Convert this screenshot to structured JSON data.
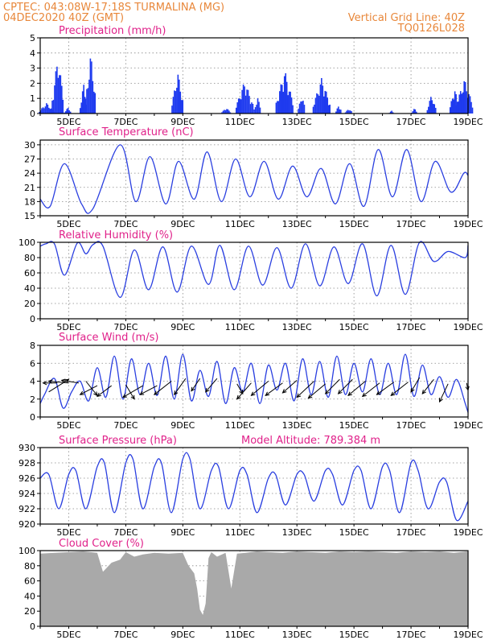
{
  "header": {
    "line1": "CPTEC:   043:08W-17:18S   TURMALINA (MG)",
    "line2": "04DEC2020 40Z (GMT)",
    "right1": "Vertical Grid Line: 40Z",
    "right2": "TQ0126L028"
  },
  "colors": {
    "header": "#e8873a",
    "title": "#e0218a",
    "line": "#2a3fe0",
    "bar": "#1f3bef",
    "cloud": "#a9a9a9"
  },
  "chart_data": [
    {
      "id": "precip",
      "type": "bar",
      "title": "Precipitation (mm/h)",
      "ylim": [
        0,
        5
      ],
      "yticks": [
        "0",
        "1",
        "2",
        "3",
        "4",
        "5"
      ],
      "xlabels": [
        "5DEC",
        "7DEC",
        "9DEC",
        "11DEC",
        "13DEC",
        "15DEC",
        "17DEC",
        "19DEC"
      ],
      "x_range_days": [
        4,
        19
      ],
      "events": [
        [
          4.2,
          0.7,
          0.25
        ],
        [
          4.6,
          3.9,
          0.2
        ],
        [
          4.95,
          0.4,
          0.12
        ],
        [
          5.5,
          2.0,
          0.12
        ],
        [
          5.75,
          4.0,
          0.18
        ],
        [
          8.8,
          2.8,
          0.2
        ],
        [
          10.5,
          0.4,
          0.15
        ],
        [
          11.15,
          2.2,
          0.3
        ],
        [
          11.6,
          1.1,
          0.12
        ],
        [
          12.55,
          2.9,
          0.3
        ],
        [
          13.15,
          1.3,
          0.12
        ],
        [
          13.85,
          2.4,
          0.3
        ],
        [
          14.45,
          0.6,
          0.1
        ],
        [
          14.8,
          0.35,
          0.12
        ],
        [
          16.3,
          0.2,
          0.08
        ],
        [
          17.1,
          0.35,
          0.1
        ],
        [
          17.7,
          1.3,
          0.15
        ],
        [
          18.5,
          1.8,
          0.15
        ],
        [
          18.85,
          2.3,
          0.3
        ]
      ]
    },
    {
      "id": "temp",
      "type": "line",
      "title": "Surface Temperature (nC)",
      "ylim": [
        15,
        31
      ],
      "yticks": [
        "15",
        "18",
        "21",
        "24",
        "27",
        "30"
      ],
      "ytickvals": [
        15,
        18,
        21,
        24,
        27,
        30
      ],
      "xlabels": [
        "5DEC",
        "7DEC",
        "9DEC",
        "11DEC",
        "13DEC",
        "15DEC",
        "17DEC",
        "19DEC"
      ],
      "x_range_days": [
        4,
        19
      ],
      "x": [
        4.0,
        4.35,
        4.85,
        5.45,
        5.85,
        6.8,
        7.35,
        7.85,
        8.4,
        8.85,
        9.4,
        9.85,
        10.35,
        10.85,
        11.35,
        11.85,
        12.35,
        12.85,
        13.35,
        13.85,
        14.35,
        14.85,
        15.35,
        15.85,
        16.35,
        16.85,
        17.35,
        17.85,
        18.4,
        18.85,
        19.0
      ],
      "y": [
        18.5,
        17.0,
        26.0,
        17.5,
        16.5,
        30.0,
        18.0,
        27.5,
        17.5,
        26.5,
        18.5,
        28.5,
        18.0,
        27.0,
        19.0,
        26.5,
        18.5,
        25.5,
        19.0,
        25.0,
        17.5,
        26.0,
        17.0,
        29.0,
        19.0,
        29.0,
        18.0,
        26.5,
        20.0,
        24.0,
        23.5
      ]
    },
    {
      "id": "rh",
      "type": "line",
      "title": "Relative Humidity (%)",
      "ylim": [
        0,
        100
      ],
      "yticks": [
        "0",
        "20",
        "40",
        "60",
        "80",
        "100"
      ],
      "ytickvals": [
        0,
        20,
        40,
        60,
        80,
        100
      ],
      "xlabels": [
        "5DEC",
        "7DEC",
        "9DEC",
        "11DEC",
        "13DEC",
        "15DEC",
        "17DEC",
        "19DEC"
      ],
      "x_range_days": [
        4,
        19
      ],
      "x": [
        4.0,
        4.2,
        4.5,
        4.85,
        5.3,
        5.6,
        5.85,
        6.2,
        6.8,
        7.3,
        7.8,
        8.3,
        8.8,
        9.3,
        9.9,
        10.3,
        10.8,
        11.3,
        11.8,
        12.3,
        12.8,
        13.3,
        13.8,
        14.3,
        14.8,
        15.3,
        15.8,
        16.3,
        16.8,
        17.3,
        17.8,
        18.3,
        18.9,
        19.0
      ],
      "y": [
        95,
        98,
        98,
        57,
        99,
        85,
        97,
        95,
        28,
        90,
        38,
        94,
        35,
        95,
        45,
        96,
        38,
        95,
        44,
        93,
        40,
        98,
        43,
        94,
        46,
        98,
        30,
        96,
        32,
        100,
        75,
        88,
        80,
        96
      ]
    },
    {
      "id": "wind",
      "type": "line",
      "title": "Surface Wind (m/s)",
      "ylim": [
        0,
        8
      ],
      "yticks": [
        "0",
        "2",
        "4",
        "6",
        "8"
      ],
      "ytickvals": [
        0,
        2,
        4,
        6,
        8
      ],
      "xlabels": [
        "5DEC",
        "7DEC",
        "9DEC",
        "11DEC",
        "13DEC",
        "15DEC",
        "17DEC",
        "19DEC"
      ],
      "x_range_days": [
        4,
        19
      ],
      "x": [
        4.0,
        4.15,
        4.5,
        4.8,
        5.1,
        5.4,
        5.7,
        6.0,
        6.3,
        6.6,
        6.9,
        7.2,
        7.5,
        7.8,
        8.1,
        8.4,
        8.7,
        9.0,
        9.3,
        9.6,
        9.9,
        10.2,
        10.5,
        10.8,
        11.1,
        11.4,
        11.7,
        12.0,
        12.3,
        12.6,
        12.9,
        13.2,
        13.5,
        13.8,
        14.1,
        14.4,
        14.7,
        15.0,
        15.3,
        15.6,
        15.9,
        16.2,
        16.5,
        16.8,
        17.1,
        17.4,
        17.7,
        18.0,
        18.3,
        18.6,
        18.9,
        19.0
      ],
      "y": [
        1.5,
        2.5,
        4.3,
        1.0,
        2.8,
        4.0,
        1.8,
        5.5,
        2.2,
        6.8,
        2.0,
        6.5,
        2.5,
        6.0,
        2.4,
        6.8,
        2.0,
        7.0,
        1.8,
        5.2,
        2.3,
        6.2,
        1.5,
        5.5,
        2.8,
        6.0,
        1.5,
        5.8,
        3.0,
        6.0,
        1.8,
        6.5,
        2.5,
        6.2,
        2.2,
        6.8,
        2.5,
        6.0,
        2.8,
        6.5,
        2.5,
        6.0,
        2.5,
        7.0,
        2.3,
        5.8,
        2.5,
        4.5,
        2.2,
        4.2,
        1.5,
        0.5
      ],
      "vectors": [
        [
          4.3,
          2.8,
          0.7,
          1.4
        ],
        [
          4.6,
          3.8,
          -0.5,
          0.0
        ],
        [
          5.0,
          3.8,
          -0.7,
          0.2
        ],
        [
          5.35,
          3.8,
          -0.6,
          0.3
        ],
        [
          5.6,
          4.0,
          0.4,
          -1.6
        ],
        [
          6.0,
          3.5,
          -0.6,
          -1.0
        ],
        [
          6.5,
          3.5,
          -0.5,
          -1.2
        ],
        [
          7.0,
          3.6,
          0.3,
          -1.6
        ],
        [
          7.6,
          3.5,
          -0.7,
          -1.3
        ],
        [
          8.1,
          3.5,
          -0.6,
          -1.0
        ],
        [
          8.6,
          4.0,
          -0.6,
          -1.5
        ],
        [
          9.1,
          4.3,
          -0.4,
          -1.8
        ],
        [
          9.6,
          4.3,
          -0.3,
          -1.4
        ],
        [
          10.2,
          4.3,
          -0.4,
          -1.5
        ],
        [
          10.9,
          3.7,
          0.2,
          -1.1
        ],
        [
          11.4,
          3.8,
          -0.5,
          -1.8
        ],
        [
          12.0,
          4.0,
          -0.6,
          -1.6
        ],
        [
          12.5,
          3.8,
          -0.6,
          -1.4
        ],
        [
          13.0,
          4.1,
          -0.5,
          -1.4
        ],
        [
          13.6,
          4.0,
          -0.6,
          -1.8
        ],
        [
          14.0,
          3.7,
          -0.6,
          -1.6
        ],
        [
          14.5,
          4.2,
          -0.5,
          -1.6
        ],
        [
          14.95,
          4.2,
          -0.5,
          -1.6
        ],
        [
          15.4,
          4.0,
          -0.6,
          -1.6
        ],
        [
          15.9,
          3.8,
          -0.6,
          -1.5
        ],
        [
          16.4,
          3.9,
          -0.6,
          -1.4
        ],
        [
          16.9,
          3.9,
          -0.6,
          -1.5
        ],
        [
          17.3,
          4.4,
          -0.3,
          -1.6
        ],
        [
          17.8,
          4.2,
          -0.4,
          -1.6
        ],
        [
          18.3,
          3.7,
          -0.3,
          -2.0
        ],
        [
          18.95,
          3.8,
          0.05,
          -0.8
        ]
      ]
    },
    {
      "id": "pres",
      "type": "line",
      "title": "Surface Pressure (hPa)",
      "annotation": "Model Altitude: 789.384 m",
      "ylim": [
        920,
        930
      ],
      "yticks": [
        "920",
        "922",
        "924",
        "926",
        "928",
        "930"
      ],
      "ytickvals": [
        920,
        922,
        924,
        926,
        928,
        930
      ],
      "xlabels": [
        "5DEC",
        "7DEC",
        "9DEC",
        "11DEC",
        "13DEC",
        "15DEC",
        "17DEC",
        "19DEC"
      ],
      "x_range_days": [
        4,
        19
      ],
      "x": [
        4.0,
        4.3,
        4.65,
        5.0,
        5.25,
        5.6,
        6.0,
        6.25,
        6.6,
        7.0,
        7.25,
        7.6,
        8.0,
        8.25,
        8.6,
        9.0,
        9.25,
        9.6,
        10.0,
        10.25,
        10.6,
        11.0,
        11.25,
        11.6,
        12.0,
        12.25,
        12.6,
        13.0,
        13.25,
        13.6,
        14.0,
        14.25,
        14.6,
        15.0,
        15.25,
        15.6,
        16.0,
        16.25,
        16.6,
        17.0,
        17.25,
        17.6,
        18.0,
        18.25,
        18.6,
        19.0
      ],
      "y": [
        926.0,
        926.5,
        922.0,
        926.5,
        927.0,
        922.0,
        927.5,
        928.0,
        921.5,
        928.0,
        928.5,
        922.0,
        927.5,
        928.0,
        921.5,
        928.5,
        928.5,
        922.0,
        927.0,
        927.5,
        922.0,
        927.0,
        926.5,
        921.5,
        926.0,
        926.5,
        922.5,
        926.5,
        926.5,
        923.0,
        927.0,
        926.5,
        922.5,
        927.0,
        927.0,
        922.0,
        927.5,
        927.0,
        921.5,
        928.0,
        927.0,
        922.0,
        925.5,
        925.5,
        920.5,
        923.0
      ]
    },
    {
      "id": "cloud",
      "type": "area",
      "title": "Cloud Cover (%)",
      "ylim": [
        0,
        100
      ],
      "yticks": [
        "0",
        "20",
        "40",
        "60",
        "80",
        "100"
      ],
      "ytickvals": [
        0,
        20,
        40,
        60,
        80,
        100
      ],
      "xlabels": [
        "5DEC",
        "7DEC",
        "9DEC",
        "11DEC",
        "13DEC",
        "15DEC",
        "17DEC",
        "19DEC"
      ],
      "x_range_days": [
        4,
        19
      ],
      "x": [
        4.0,
        4.5,
        5.0,
        5.5,
        6.0,
        6.2,
        6.5,
        6.8,
        7.0,
        7.3,
        7.6,
        8.0,
        8.5,
        9.0,
        9.2,
        9.4,
        9.5,
        9.6,
        9.7,
        9.8,
        9.9,
        10.0,
        10.2,
        10.5,
        10.7,
        10.9,
        11.2,
        11.6,
        12.0,
        12.5,
        13.0,
        13.5,
        14.0,
        14.5,
        15.0,
        15.5,
        16.0,
        16.5,
        17.0,
        17.5,
        18.0,
        18.5,
        19.0
      ],
      "y": [
        96,
        97,
        98,
        99,
        97,
        72,
        84,
        88,
        98,
        92,
        95,
        97,
        96,
        97,
        80,
        70,
        50,
        22,
        15,
        30,
        90,
        98,
        92,
        97,
        50,
        96,
        97,
        99,
        98,
        97,
        99,
        98,
        97,
        99,
        98,
        99,
        98,
        97,
        99,
        98,
        99,
        97,
        99
      ]
    }
  ]
}
